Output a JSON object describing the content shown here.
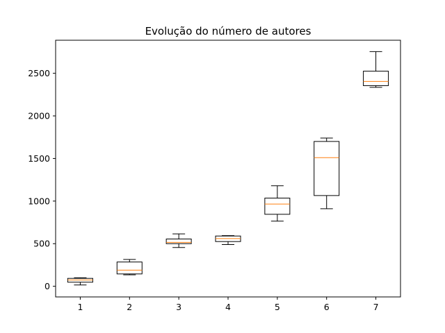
{
  "chart_data": {
    "type": "box",
    "title": "Evolução do número de autores",
    "xlabel": "",
    "ylabel": "",
    "categories": [
      "1",
      "2",
      "3",
      "4",
      "5",
      "6",
      "7"
    ],
    "boxes": [
      {
        "whislo": 15,
        "q1": 48,
        "med": 74,
        "q3": 93,
        "whishi": 100
      },
      {
        "whislo": 135,
        "q1": 145,
        "med": 190,
        "q3": 285,
        "whishi": 315
      },
      {
        "whislo": 455,
        "q1": 500,
        "med": 515,
        "q3": 555,
        "whishi": 615
      },
      {
        "whislo": 490,
        "q1": 525,
        "med": 560,
        "q3": 590,
        "whishi": 595
      },
      {
        "whislo": 765,
        "q1": 845,
        "med": 965,
        "q3": 1035,
        "whishi": 1180
      },
      {
        "whislo": 910,
        "q1": 1065,
        "med": 1510,
        "q3": 1700,
        "whishi": 1740
      },
      {
        "whislo": 2335,
        "q1": 2355,
        "med": 2405,
        "q3": 2525,
        "whishi": 2755
      }
    ],
    "yticks": [
      0,
      500,
      1000,
      1500,
      2000,
      2500
    ],
    "ylim": [
      -125,
      2888
    ],
    "xlim": [
      0.5,
      7.5
    ],
    "grid": false,
    "legend": "none",
    "colors": {
      "box": "#000000",
      "median": "#ff7f0e",
      "axes": "#000000",
      "background": "#ffffff"
    }
  }
}
